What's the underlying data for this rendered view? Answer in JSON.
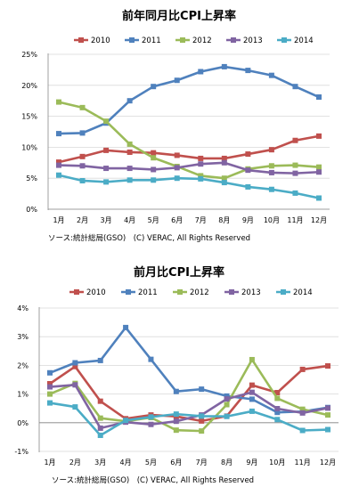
{
  "chart_data": [
    {
      "type": "line",
      "title": "前年同月比CPI上昇率",
      "categories": [
        "1月",
        "2月",
        "3月",
        "4月",
        "5月",
        "6月",
        "7月",
        "8月",
        "9月",
        "10月",
        "11月",
        "12月"
      ],
      "ylim": [
        0,
        25
      ],
      "yticks": [
        "0%",
        "5%",
        "10%",
        "15%",
        "20%",
        "25%"
      ],
      "ytick_values": [
        0,
        5,
        10,
        15,
        20,
        25
      ],
      "grid": true,
      "legend_position": "top",
      "source": "ソース:統計総局(GSO)　(C) VERAC, All Rights Reserved",
      "series": [
        {
          "name": "2010",
          "color": "#C0504D",
          "values": [
            7.6,
            8.5,
            9.5,
            9.2,
            9.1,
            8.7,
            8.2,
            8.2,
            8.9,
            9.6,
            11.1,
            11.8
          ]
        },
        {
          "name": "2011",
          "color": "#4F81BD",
          "values": [
            12.2,
            12.3,
            13.9,
            17.5,
            19.8,
            20.8,
            22.2,
            23.0,
            22.4,
            21.6,
            19.8,
            18.1
          ]
        },
        {
          "name": "2012",
          "color": "#9BBB59",
          "values": [
            17.3,
            16.4,
            14.2,
            10.5,
            8.3,
            6.9,
            5.4,
            5.0,
            6.5,
            7.0,
            7.1,
            6.8
          ]
        },
        {
          "name": "2013",
          "color": "#8064A2",
          "values": [
            7.1,
            7.0,
            6.6,
            6.6,
            6.4,
            6.7,
            7.3,
            7.5,
            6.3,
            5.9,
            5.8,
            6.0
          ]
        },
        {
          "name": "2014",
          "color": "#4BACC6",
          "values": [
            5.5,
            4.6,
            4.4,
            4.7,
            4.7,
            5.0,
            4.9,
            4.3,
            3.6,
            3.2,
            2.6,
            1.8
          ]
        }
      ]
    },
    {
      "type": "line",
      "title": "前月比CPI上昇率",
      "categories": [
        "1月",
        "2月",
        "3月",
        "4月",
        "5月",
        "6月",
        "7月",
        "8月",
        "9月",
        "10月",
        "11月",
        "12月"
      ],
      "ylim": [
        -1,
        4
      ],
      "yticks": [
        "-1%",
        "0%",
        "1%",
        "2%",
        "3%",
        "4%"
      ],
      "ytick_values": [
        -1,
        0,
        1,
        2,
        3,
        4
      ],
      "grid": true,
      "legend_position": "top",
      "source": "ソース:統計総局(GSO)　(C) VERAC, All Rights Reserved",
      "series": [
        {
          "name": "2010",
          "color": "#C0504D",
          "values": [
            1.36,
            1.96,
            0.75,
            0.14,
            0.27,
            0.22,
            0.06,
            0.23,
            1.31,
            1.05,
            1.86,
            1.98
          ]
        },
        {
          "name": "2011",
          "color": "#4F81BD",
          "values": [
            1.74,
            2.09,
            2.17,
            3.32,
            2.21,
            1.09,
            1.17,
            0.93,
            0.82,
            0.36,
            0.39,
            0.53
          ]
        },
        {
          "name": "2012",
          "color": "#9BBB59",
          "values": [
            1.0,
            1.37,
            0.16,
            0.05,
            0.18,
            -0.26,
            -0.29,
            0.63,
            2.2,
            0.85,
            0.47,
            0.27
          ]
        },
        {
          "name": "2013",
          "color": "#8064A2",
          "values": [
            1.25,
            1.32,
            -0.19,
            0.02,
            -0.06,
            0.05,
            0.27,
            0.83,
            1.06,
            0.49,
            0.34,
            0.51
          ]
        },
        {
          "name": "2014",
          "color": "#4BACC6",
          "values": [
            0.69,
            0.55,
            -0.44,
            0.08,
            0.2,
            0.3,
            0.23,
            0.22,
            0.4,
            0.11,
            -0.27,
            -0.24
          ]
        }
      ]
    }
  ]
}
